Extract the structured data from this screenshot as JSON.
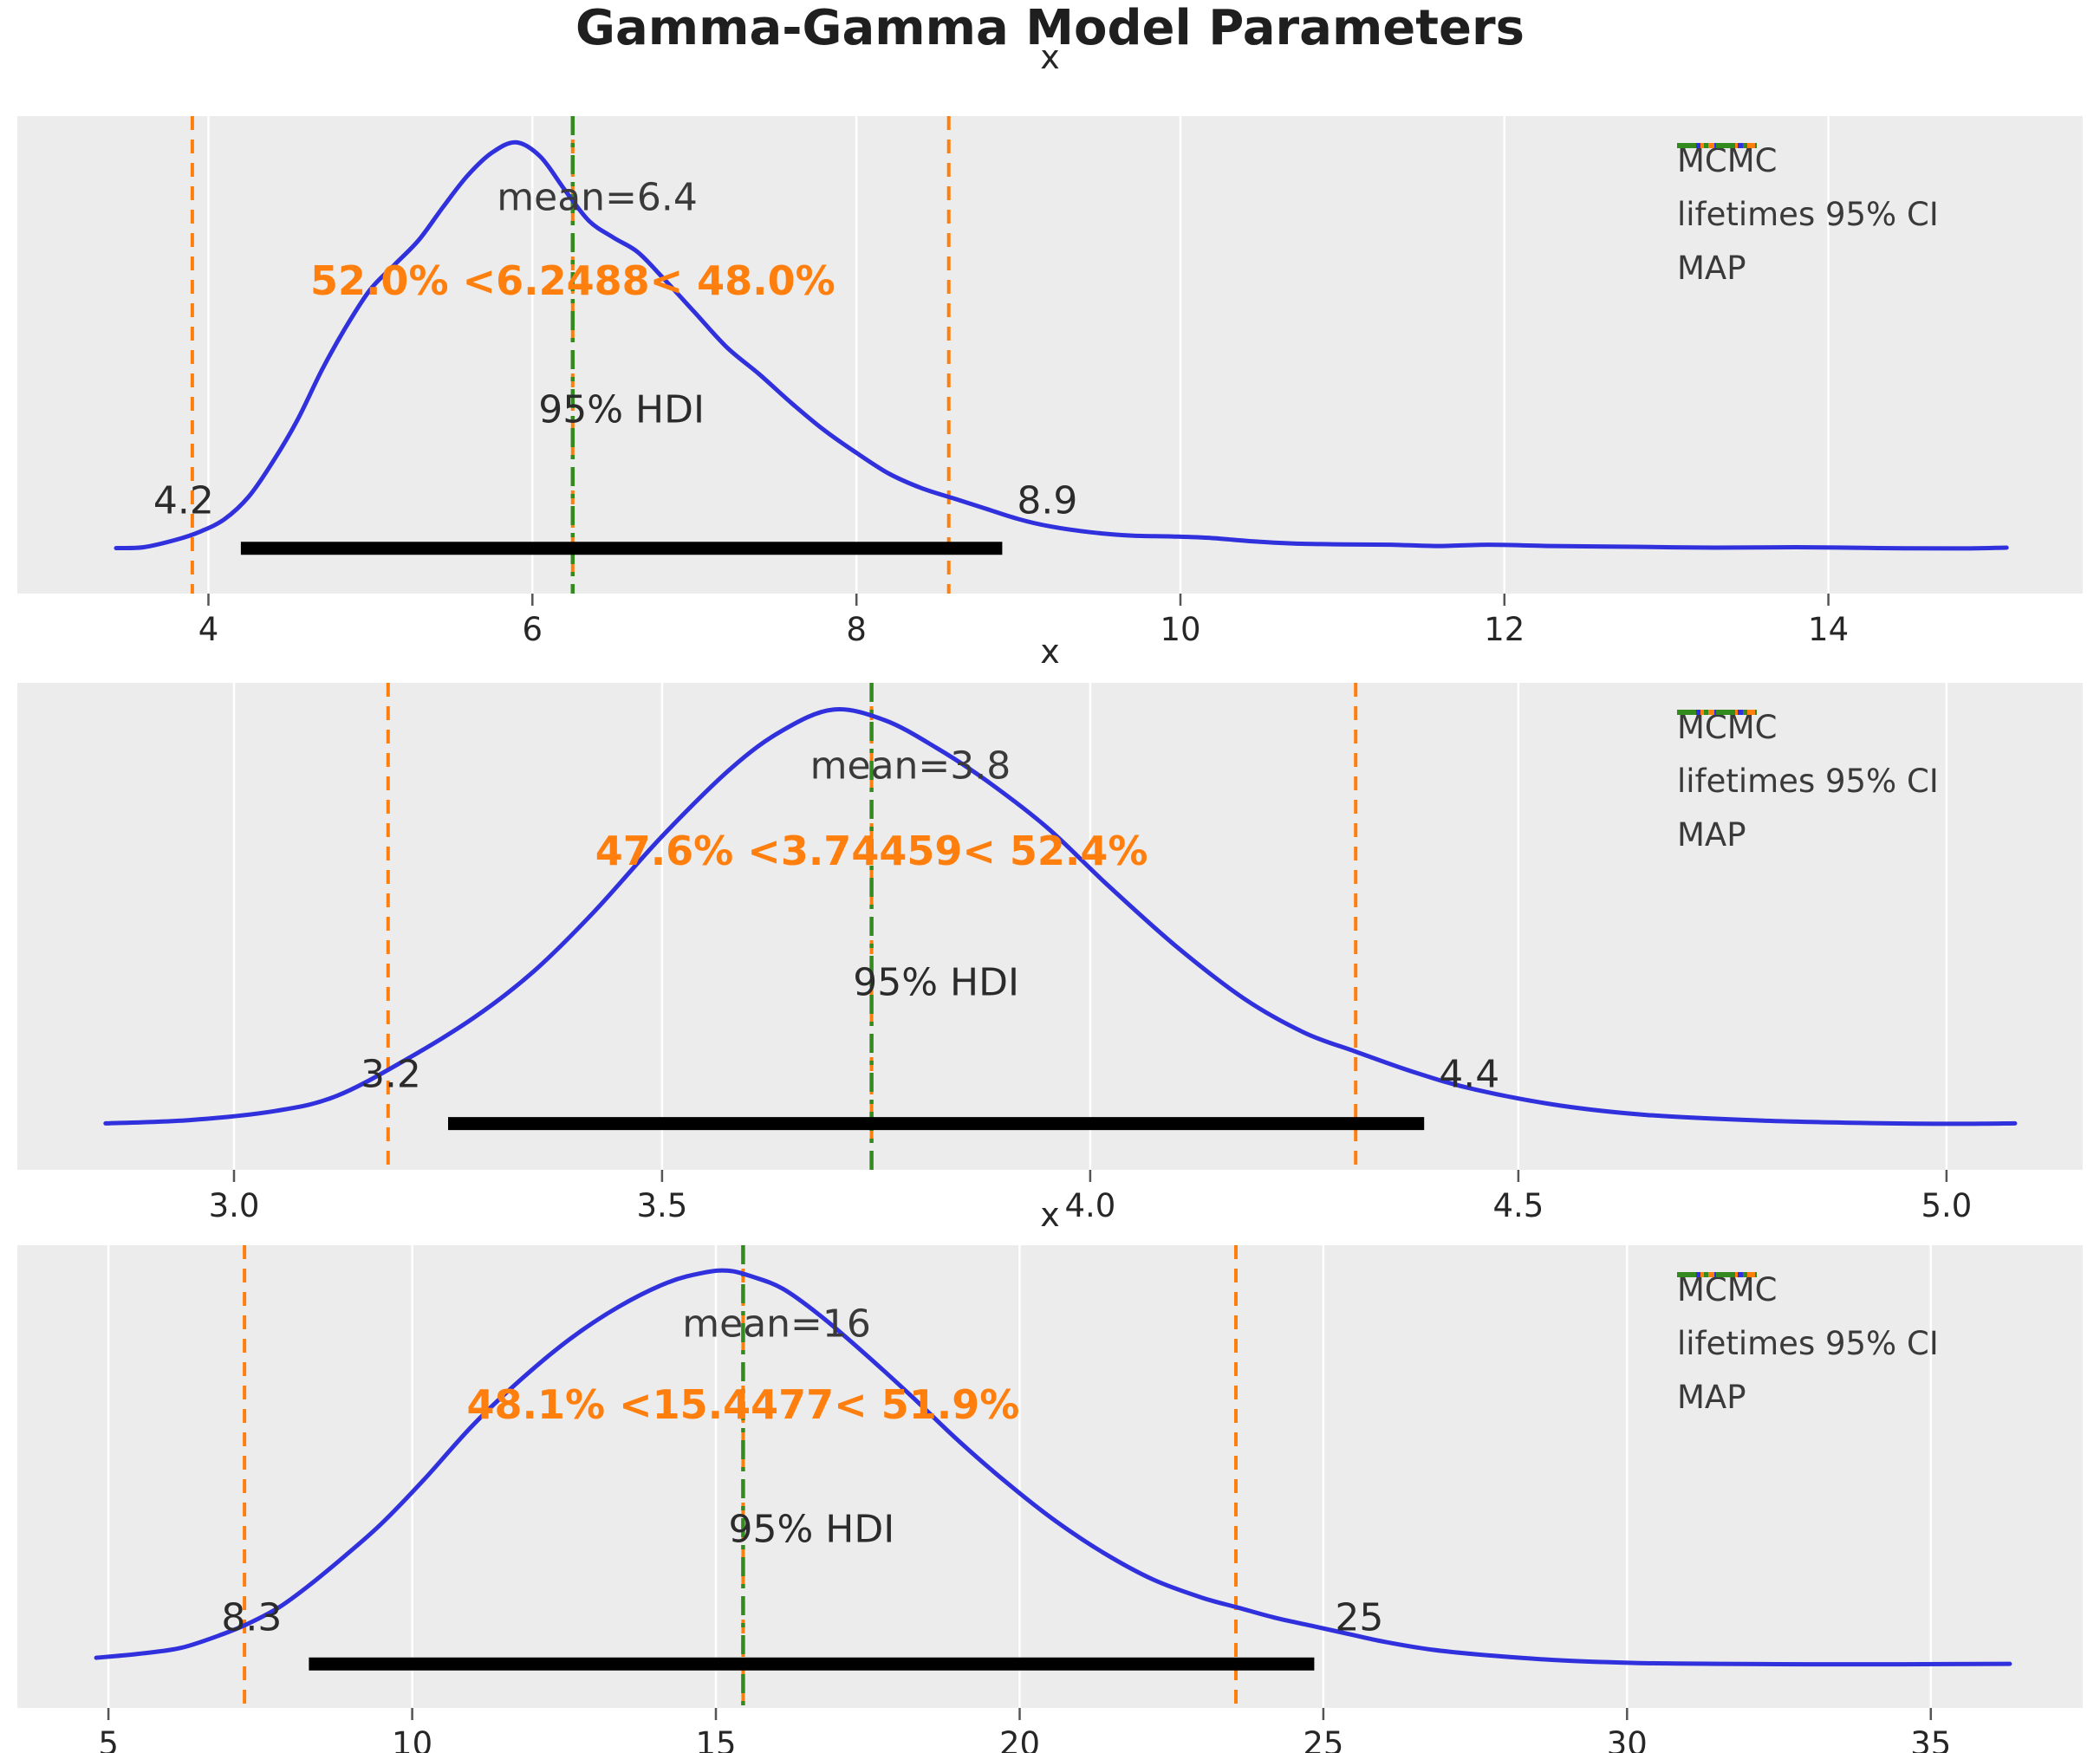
{
  "suptitle": "Gamma-Gamma Model Parameters",
  "colors": {
    "kde": "#3030dd",
    "ci": "#ff7f0e",
    "map": "#338b1f",
    "hdi_bar": "#000000",
    "panel_bg": "#ececec",
    "grid": "#ffffff",
    "tick": "#555555",
    "text": "#262626"
  },
  "legend": {
    "items": [
      {
        "label": "MCMC",
        "style": "solid",
        "color": "#3030dd"
      },
      {
        "label": "lifetimes 95% CI",
        "style": "dashed",
        "color": "#ff7f0e"
      },
      {
        "label": "MAP",
        "style": "dashdot",
        "color": "#338b1f"
      }
    ]
  },
  "chart_data": {
    "type": "line",
    "subtype": "kde-posterior",
    "grid": "vertical-only",
    "legend_position": "upper-right",
    "panels": [
      {
        "title": "x",
        "xlim": [
          2.82,
          15.57
        ],
        "xticks": [
          4,
          6,
          8,
          10,
          12,
          14
        ],
        "xtick_labels": [
          "4",
          "6",
          "8",
          "10",
          "12",
          "14"
        ],
        "mean": 6.4,
        "mean_label": "mean=6.4",
        "ci_text": "52.0% <6.2488< 48.0%",
        "ci_lower": 3.9,
        "ci_point": 6.2488,
        "ci_upper": 8.57,
        "map": 6.2488,
        "hdi": [
          4.2,
          8.9
        ],
        "hdi_label": "95% HDI",
        "hdi_low_label": "4.2",
        "hdi_high_label": "8.9",
        "kde_x": [
          3.43,
          3.6,
          3.8,
          3.95,
          4.1,
          4.25,
          4.4,
          4.55,
          4.7,
          4.85,
          5.0,
          5.15,
          5.3,
          5.45,
          5.6,
          5.75,
          5.9,
          6.05,
          6.2,
          6.35,
          6.5,
          6.65,
          6.8,
          7.0,
          7.2,
          7.4,
          7.6,
          7.8,
          8.0,
          8.2,
          8.4,
          8.6,
          8.8,
          9.0,
          9.2,
          9.45,
          9.7,
          9.95,
          10.2,
          10.45,
          10.7,
          11.0,
          11.3,
          11.6,
          11.9,
          12.3,
          12.8,
          13.3,
          13.8,
          14.3,
          14.8,
          15.1
        ],
        "kde_density": [
          0.02,
          0.022,
          0.04,
          0.06,
          0.09,
          0.145,
          0.23,
          0.33,
          0.45,
          0.555,
          0.645,
          0.705,
          0.765,
          0.845,
          0.92,
          0.975,
          1.0,
          0.965,
          0.885,
          0.81,
          0.77,
          0.735,
          0.675,
          0.59,
          0.505,
          0.44,
          0.37,
          0.305,
          0.25,
          0.2,
          0.165,
          0.14,
          0.115,
          0.09,
          0.072,
          0.058,
          0.05,
          0.048,
          0.044,
          0.036,
          0.031,
          0.029,
          0.028,
          0.025,
          0.028,
          0.025,
          0.023,
          0.021,
          0.022,
          0.02,
          0.019,
          0.021
        ]
      },
      {
        "title": "x",
        "xlim": [
          2.747,
          5.159
        ],
        "xticks": [
          3.0,
          3.5,
          4.0,
          4.5,
          5.0
        ],
        "xtick_labels": [
          "3.0",
          "3.5",
          "4.0",
          "4.5",
          "5.0"
        ],
        "mean": 3.79,
        "mean_label": "mean=3.8",
        "ci_text": "47.6% <3.74459< 52.4%",
        "ci_lower": 3.18,
        "ci_point": 3.74459,
        "ci_upper": 4.31,
        "map": 3.74459,
        "hdi": [
          3.25,
          4.39
        ],
        "hdi_label": "95% HDI",
        "hdi_low_label": "3.2",
        "hdi_high_label": "4.4",
        "kde_x": [
          2.85,
          2.95,
          3.05,
          3.12,
          3.2,
          3.28,
          3.35,
          3.42,
          3.5,
          3.58,
          3.64,
          3.7,
          3.76,
          3.82,
          3.88,
          3.95,
          4.02,
          4.1,
          4.18,
          4.25,
          4.31,
          4.38,
          4.45,
          4.55,
          4.65,
          4.78,
          4.9,
          5.0,
          5.08
        ],
        "kde_density": [
          0.02,
          0.028,
          0.05,
          0.085,
          0.17,
          0.27,
          0.38,
          0.52,
          0.7,
          0.86,
          0.95,
          1.0,
          0.975,
          0.91,
          0.83,
          0.72,
          0.585,
          0.44,
          0.315,
          0.235,
          0.19,
          0.14,
          0.1,
          0.062,
          0.04,
          0.027,
          0.021,
          0.019,
          0.02
        ]
      },
      {
        "title": "x",
        "xlim": [
          3.5,
          37.5
        ],
        "xticks": [
          5,
          10,
          15,
          20,
          25,
          30,
          35
        ],
        "xtick_labels": [
          "5",
          "10",
          "15",
          "20",
          "25",
          "30",
          "35"
        ],
        "mean": 16.0,
        "mean_label": "mean=16",
        "ci_text": "48.1% <15.4477< 51.9%",
        "ci_lower": 7.24,
        "ci_point": 15.4477,
        "ci_upper": 23.56,
        "map": 15.4477,
        "hdi": [
          8.3,
          24.85
        ],
        "hdi_label": "95% HDI",
        "hdi_low_label": "8.3",
        "hdi_high_label": "25",
        "kde_x": [
          4.8,
          5.5,
          6.2,
          6.9,
          7.3,
          7.8,
          8.3,
          8.9,
          9.5,
          10.2,
          11.0,
          11.8,
          12.6,
          13.4,
          14.2,
          14.8,
          15.2,
          15.6,
          16.1,
          16.7,
          17.4,
          18.2,
          19.0,
          19.8,
          20.6,
          21.4,
          22.2,
          23.0,
          23.6,
          24.2,
          24.8,
          25.4,
          26.0,
          26.8,
          27.8,
          29.0,
          30.2,
          31.5,
          33.0,
          34.5,
          36.3
        ],
        "kde_density": [
          0.035,
          0.045,
          0.06,
          0.095,
          0.12,
          0.16,
          0.215,
          0.29,
          0.37,
          0.48,
          0.615,
          0.73,
          0.83,
          0.91,
          0.97,
          0.995,
          1.0,
          0.985,
          0.955,
          0.89,
          0.8,
          0.69,
          0.575,
          0.47,
          0.375,
          0.295,
          0.23,
          0.185,
          0.16,
          0.135,
          0.115,
          0.095,
          0.075,
          0.055,
          0.04,
          0.028,
          0.022,
          0.02,
          0.019,
          0.019,
          0.02
        ]
      }
    ]
  }
}
